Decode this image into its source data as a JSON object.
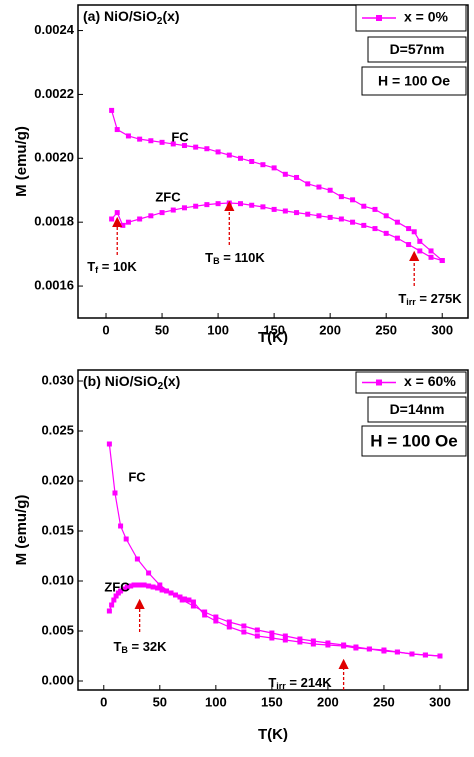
{
  "chart_data": [
    {
      "type": "line",
      "title": {
        "text": "(a) NiO/SiO",
        "sub": "2",
        "tail": "(x)"
      },
      "x_label": "T(K)",
      "y_label": "M (emu/g)",
      "legend": "x = 0%",
      "info": [
        "D=57nm",
        "H = 100 Oe"
      ],
      "color": "#ff00ff",
      "xlim": [
        -25,
        323
      ],
      "ylim": [
        0.0015,
        0.00248
      ],
      "xticks": [
        0,
        50,
        100,
        150,
        200,
        250,
        300
      ],
      "yticks": [
        0.0016,
        0.0018,
        {
          "value": 0.002,
          "label": "0.0020"
        },
        0.0022,
        0.0024
      ],
      "series": [
        {
          "name": "FC",
          "x": [
            5,
            10,
            20,
            30,
            40,
            50,
            60,
            70,
            80,
            90,
            100,
            110,
            120,
            130,
            140,
            150,
            160,
            170,
            180,
            190,
            200,
            210,
            220,
            230,
            240,
            250,
            260,
            270,
            275,
            280,
            290,
            300
          ],
          "values": [
            0.00215,
            0.00209,
            0.00207,
            0.00206,
            0.002055,
            0.00205,
            0.002045,
            0.00204,
            0.002035,
            0.00203,
            0.00202,
            0.00201,
            0.002,
            0.00199,
            0.00198,
            0.00197,
            0.00195,
            0.00194,
            0.00192,
            0.00191,
            0.0019,
            0.00188,
            0.00187,
            0.00185,
            0.00184,
            0.00182,
            0.0018,
            0.00178,
            0.00177,
            0.00174,
            0.00171,
            0.00168
          ]
        },
        {
          "name": "ZFC",
          "x": [
            5,
            10,
            15,
            20,
            30,
            40,
            50,
            60,
            70,
            80,
            90,
            100,
            110,
            120,
            130,
            140,
            150,
            160,
            170,
            180,
            190,
            200,
            210,
            220,
            230,
            240,
            250,
            260,
            270,
            280,
            290,
            300
          ],
          "values": [
            0.00181,
            0.00183,
            0.00179,
            0.0018,
            0.00181,
            0.00182,
            0.00183,
            0.001838,
            0.001845,
            0.00185,
            0.001855,
            0.001858,
            0.00186,
            0.001858,
            0.001853,
            0.001848,
            0.00184,
            0.001835,
            0.00183,
            0.001825,
            0.00182,
            0.001815,
            0.00181,
            0.0018,
            0.00179,
            0.00178,
            0.001765,
            0.00175,
            0.00173,
            0.00171,
            0.00169,
            0.00168
          ]
        }
      ],
      "annotations": [
        {
          "x": 10,
          "main": "T",
          "sub": "f",
          "rest": " = 10K"
        },
        {
          "x": 110,
          "main": "T",
          "sub": "B",
          "rest": " = 110K"
        },
        {
          "x": 275,
          "main": "T",
          "sub": "irr",
          "rest": " = 275K"
        }
      ]
    },
    {
      "type": "line",
      "title": {
        "text": "(b) NiO/SiO",
        "sub": "2",
        "tail": "(x)"
      },
      "x_label": "T(K)",
      "y_label": "M (emu/g)",
      "legend": "x = 60%",
      "info": [
        "D=14nm",
        "H = 100 Oe"
      ],
      "color": "#ff00ff",
      "xlim": [
        -23,
        325
      ],
      "ylim": [
        -0.0009,
        0.0311
      ],
      "xticks": [
        0,
        50,
        100,
        150,
        200,
        250,
        300
      ],
      "yticks": [
        {
          "value": 0,
          "label": "0.000"
        },
        {
          "value": 0.005,
          "label": "0.005"
        },
        {
          "value": 0.01,
          "label": "0.010"
        },
        {
          "value": 0.015,
          "label": "0.015"
        },
        {
          "value": 0.02,
          "label": "0.020"
        },
        {
          "value": 0.025,
          "label": "0.025"
        },
        {
          "value": 0.03,
          "label": "0.030"
        }
      ],
      "series": [
        {
          "name": "FC",
          "x": [
            5,
            10,
            15,
            20,
            30,
            40,
            50,
            60,
            70,
            80,
            90,
            100,
            112,
            125,
            137,
            150,
            162,
            175,
            187,
            200,
            214,
            225,
            237,
            250,
            262,
            275,
            287,
            300
          ],
          "values": [
            0.0237,
            0.0188,
            0.0155,
            0.0142,
            0.0122,
            0.0108,
            0.0096,
            0.0088,
            0.0081,
            0.0075,
            0.0069,
            0.0064,
            0.0059,
            0.0055,
            0.0051,
            0.0048,
            0.0045,
            0.0042,
            0.004,
            0.0038,
            0.0036,
            0.0034,
            0.0032,
            0.0031,
            0.0029,
            0.0027,
            0.0026,
            0.0025
          ]
        },
        {
          "name": "ZFC",
          "x": [
            5,
            7,
            9,
            11,
            13,
            15,
            18,
            21,
            24,
            27,
            30,
            33,
            36,
            40,
            44,
            48,
            52,
            56,
            60,
            64,
            68,
            72,
            76,
            80,
            90,
            100,
            112,
            125,
            137,
            150,
            162,
            175,
            187,
            200,
            214,
            225,
            237,
            250,
            262,
            275,
            287,
            300
          ],
          "values": [
            0.007,
            0.0076,
            0.0081,
            0.0085,
            0.0088,
            0.009,
            0.0092,
            0.0094,
            0.0095,
            0.0096,
            0.0096,
            0.0096,
            0.0096,
            0.0095,
            0.0094,
            0.0093,
            0.0091,
            0.009,
            0.0088,
            0.0086,
            0.0084,
            0.0082,
            0.0081,
            0.0079,
            0.0066,
            0.006,
            0.0054,
            0.0049,
            0.0045,
            0.0043,
            0.0041,
            0.0039,
            0.0037,
            0.0036,
            0.0035,
            0.0033,
            0.0032,
            0.003,
            0.0029,
            0.0027,
            0.0026,
            0.0025
          ]
        }
      ],
      "annotations": [
        {
          "x": 32,
          "main": "T",
          "sub": "B",
          "rest": " = 32K"
        },
        {
          "x": 214,
          "main": "T",
          "sub": "irr",
          "rest": " = 214K"
        }
      ]
    }
  ]
}
